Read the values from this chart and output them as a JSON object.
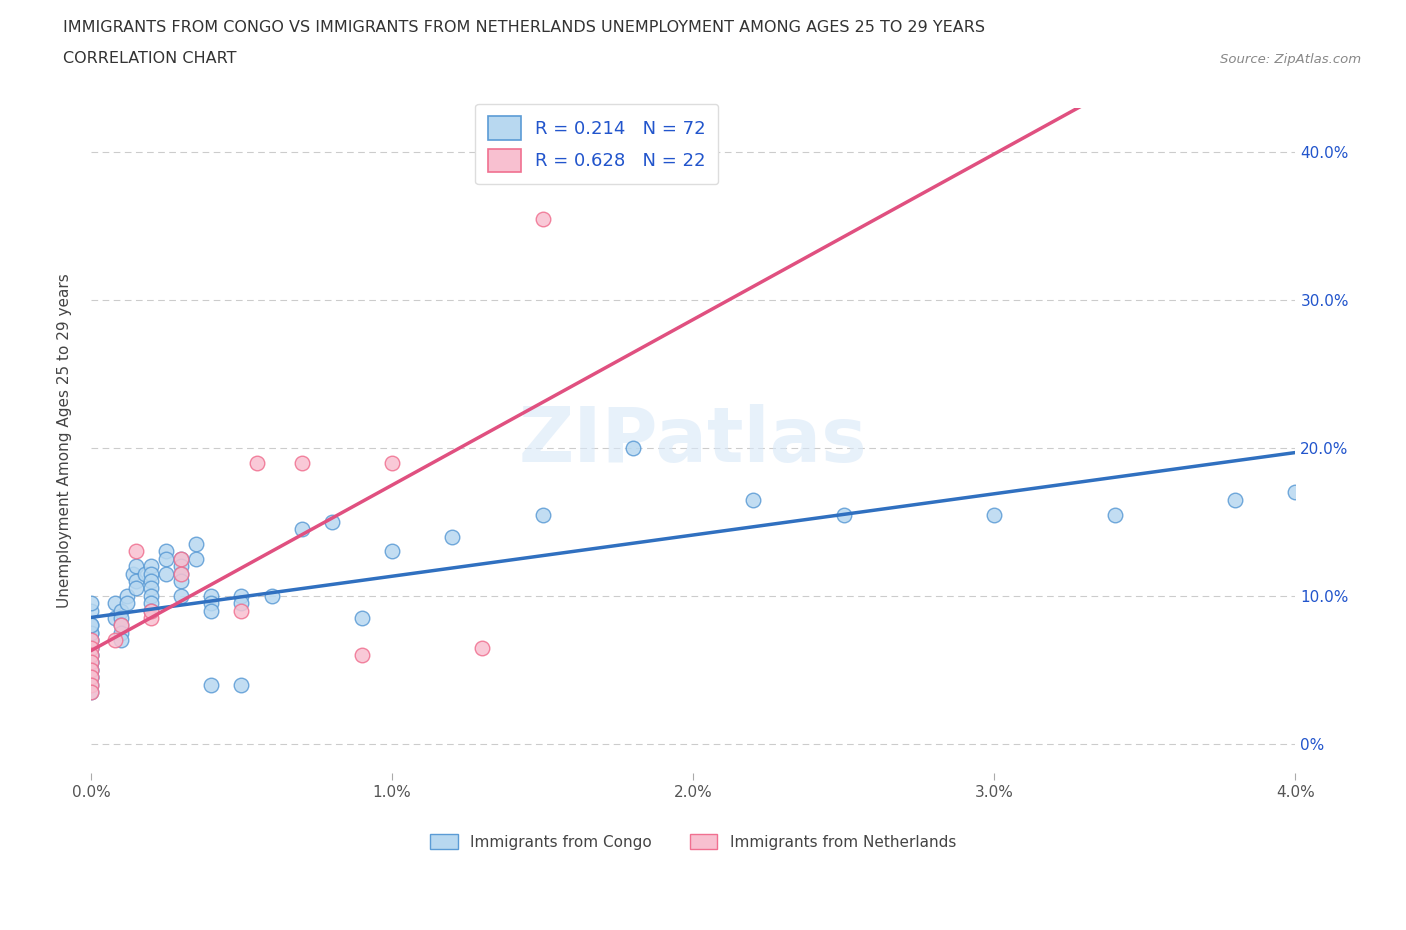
{
  "title_line1": "IMMIGRANTS FROM CONGO VS IMMIGRANTS FROM NETHERLANDS UNEMPLOYMENT AMONG AGES 25 TO 29 YEARS",
  "title_line2": "CORRELATION CHART",
  "source_text": "Source: ZipAtlas.com",
  "watermark_text": "ZIPatlas",
  "ylabel": "Unemployment Among Ages 25 to 29 years",
  "xlim": [
    0.0,
    0.04
  ],
  "ylim": [
    -0.02,
    0.43
  ],
  "yticks": [
    0.0,
    0.1,
    0.2,
    0.3,
    0.4
  ],
  "ytick_labels_right": [
    "0%",
    "10.0%",
    "20.0%",
    "30.0%",
    "40.0%"
  ],
  "xticks": [
    0.0,
    0.01,
    0.02,
    0.03,
    0.04
  ],
  "xtick_labels": [
    "0.0%",
    "1.0%",
    "2.0%",
    "3.0%",
    "4.0%"
  ],
  "congo_fill": "#b8d8f0",
  "congo_edge": "#5b9bd5",
  "netherlands_fill": "#f8c0d0",
  "netherlands_edge": "#f07090",
  "trend_congo": "#3070c0",
  "trend_netherlands": "#e05080",
  "R_congo": 0.214,
  "N_congo": 72,
  "R_netherlands": 0.628,
  "N_netherlands": 22,
  "legend_label_congo": "Immigrants from Congo",
  "legend_label_netherlands": "Immigrants from Netherlands",
  "legend_text_color": "#2255cc",
  "background_color": "#ffffff",
  "grid_color": "#cccccc",
  "title_color": "#333333",
  "source_color": "#888888",
  "right_tick_color": "#2255cc",
  "congo_x": [
    0.0,
    0.0,
    0.0,
    0.0,
    0.0,
    0.0,
    0.0,
    0.0,
    0.0,
    0.0,
    0.0,
    0.0,
    0.0,
    0.0,
    0.0,
    0.0,
    0.0,
    0.0,
    0.0,
    0.0,
    0.0008,
    0.0008,
    0.001,
    0.001,
    0.001,
    0.001,
    0.001,
    0.0012,
    0.0012,
    0.0014,
    0.0015,
    0.0015,
    0.0015,
    0.0018,
    0.002,
    0.002,
    0.002,
    0.002,
    0.002,
    0.002,
    0.002,
    0.0025,
    0.0025,
    0.0025,
    0.003,
    0.003,
    0.003,
    0.003,
    0.003,
    0.0035,
    0.0035,
    0.004,
    0.004,
    0.004,
    0.004,
    0.005,
    0.005,
    0.005,
    0.006,
    0.007,
    0.008,
    0.009,
    0.01,
    0.012,
    0.015,
    0.018,
    0.022,
    0.025,
    0.03,
    0.034,
    0.038,
    0.04
  ],
  "congo_y": [
    0.07,
    0.065,
    0.06,
    0.055,
    0.05,
    0.045,
    0.075,
    0.08,
    0.09,
    0.095,
    0.055,
    0.05,
    0.045,
    0.04,
    0.035,
    0.06,
    0.065,
    0.07,
    0.075,
    0.08,
    0.085,
    0.095,
    0.09,
    0.085,
    0.08,
    0.075,
    0.07,
    0.1,
    0.095,
    0.115,
    0.12,
    0.11,
    0.105,
    0.115,
    0.12,
    0.115,
    0.11,
    0.105,
    0.1,
    0.095,
    0.09,
    0.13,
    0.125,
    0.115,
    0.125,
    0.12,
    0.115,
    0.11,
    0.1,
    0.135,
    0.125,
    0.1,
    0.095,
    0.09,
    0.04,
    0.1,
    0.095,
    0.04,
    0.1,
    0.145,
    0.15,
    0.085,
    0.13,
    0.14,
    0.155,
    0.2,
    0.165,
    0.155,
    0.155,
    0.155,
    0.165,
    0.17
  ],
  "netherlands_x": [
    0.0,
    0.0,
    0.0,
    0.0,
    0.0,
    0.0,
    0.0,
    0.0,
    0.0008,
    0.001,
    0.0015,
    0.002,
    0.002,
    0.003,
    0.003,
    0.005,
    0.0055,
    0.007,
    0.009,
    0.01,
    0.013,
    0.015
  ],
  "netherlands_y": [
    0.07,
    0.065,
    0.06,
    0.055,
    0.05,
    0.045,
    0.04,
    0.035,
    0.07,
    0.08,
    0.13,
    0.085,
    0.09,
    0.125,
    0.115,
    0.09,
    0.19,
    0.19,
    0.06,
    0.19,
    0.065,
    0.355
  ]
}
